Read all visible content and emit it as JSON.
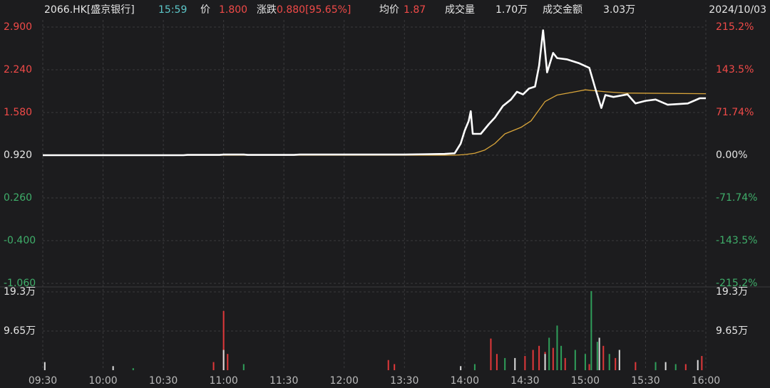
{
  "header": {
    "items": [
      {
        "text": "2066.HK[盛京银行]",
        "color": "#e6e6e6"
      },
      {
        "text": "15:59",
        "color": "#5cc6c8"
      },
      {
        "text": "价",
        "color": "#e6e6e6"
      },
      {
        "text": "1.800",
        "color": "#f04a48"
      },
      {
        "text": "涨跌",
        "color": "#e6e6e6"
      },
      {
        "text": "0.880[95.65%]",
        "color": "#f04a48"
      },
      {
        "text": "均价",
        "color": "#e6e6e6"
      },
      {
        "text": "1.87",
        "color": "#f04a48"
      },
      {
        "text": "成交量",
        "color": "#e6e6e6"
      },
      {
        "text": "1.70万",
        "color": "#e6e6e6"
      },
      {
        "text": "成交金额",
        "color": "#e6e6e6"
      },
      {
        "text": "3.03万",
        "color": "#e6e6e6"
      }
    ],
    "date": "2024/10/03"
  },
  "chart_data": [
    {
      "type": "line",
      "series": [
        {
          "color": "#ffffff",
          "x": [
            "09:30",
            "10:40",
            "10:42",
            "10:58",
            "11:00",
            "11:10",
            "11:12",
            "11:35",
            "11:38",
            "12:00",
            "13:30",
            "13:40",
            "13:50",
            "13:55",
            "13:58",
            "14:00",
            "14:02",
            "14:03",
            "14:04",
            "14:08",
            "14:12",
            "14:15",
            "14:19",
            "14:23",
            "14:26",
            "14:29",
            "14:32",
            "14:35",
            "14:37",
            "14:39",
            "14:41",
            "14:44",
            "14:46",
            "14:51",
            "14:57",
            "15:02",
            "15:05",
            "15:08",
            "15:10",
            "15:14",
            "15:21",
            "15:25",
            "15:30",
            "15:35",
            "15:41",
            "15:46",
            "15:51",
            "15:57",
            "16:00"
          ],
          "values": [
            0.92,
            0.92,
            0.925,
            0.925,
            0.93,
            0.93,
            0.925,
            0.925,
            0.93,
            0.93,
            0.93,
            0.935,
            0.94,
            0.95,
            1.1,
            1.3,
            1.45,
            1.6,
            1.25,
            1.25,
            1.4,
            1.5,
            1.68,
            1.78,
            1.9,
            1.86,
            1.95,
            1.98,
            2.3,
            2.85,
            2.2,
            2.5,
            2.42,
            2.4,
            2.34,
            2.27,
            1.95,
            1.65,
            1.85,
            1.82,
            1.86,
            1.72,
            1.76,
            1.78,
            1.7,
            1.71,
            1.72,
            1.8,
            1.8
          ]
        },
        {
          "color": "#d9a53a",
          "x": [
            "09:30",
            "13:55",
            "14:00",
            "14:05",
            "14:10",
            "14:15",
            "14:20",
            "14:28",
            "14:33",
            "14:40",
            "14:46",
            "14:55",
            "15:00",
            "15:10",
            "15:20",
            "16:00"
          ],
          "values": [
            0.92,
            0.92,
            0.93,
            0.95,
            1.0,
            1.1,
            1.25,
            1.35,
            1.45,
            1.75,
            1.85,
            1.9,
            1.93,
            1.9,
            1.88,
            1.87
          ]
        }
      ],
      "ylim": [
        -1.06,
        2.9
      ],
      "yticks": [
        {
          "value": 2.9,
          "label": "2.900"
        },
        {
          "value": 2.24,
          "label": "2.240"
        },
        {
          "value": 1.58,
          "label": "1.580"
        },
        {
          "value": 0.92,
          "label": "0.920"
        },
        {
          "value": 0.26,
          "label": "0.260"
        },
        {
          "value": -0.4,
          "label": "-0.400"
        },
        {
          "value": -1.06,
          "label": "-1.060"
        }
      ],
      "y2lim": [
        -215.2,
        215.2
      ],
      "y2ticks": [
        {
          "value": 215.2,
          "label": "215.2%"
        },
        {
          "value": 143.5,
          "label": "143.5%"
        },
        {
          "value": 71.74,
          "label": "71.74%"
        },
        {
          "value": 0,
          "label": "0.00%"
        },
        {
          "value": -71.74,
          "label": "-71.74%"
        },
        {
          "value": -143.5,
          "label": "-143.5%"
        },
        {
          "value": -215.2,
          "label": "-215.2%"
        }
      ],
      "up_color": "#f04a48",
      "down_color": "#3fae6a",
      "flat_color": "#e6e6e6",
      "grid": true
    },
    {
      "type": "bar",
      "series": [
        {
          "color": "#e0383a",
          "x": [
            "10:55",
            "11:00",
            "11:02",
            "13:22",
            "13:25",
            "14:13",
            "14:16",
            "14:30",
            "14:34",
            "14:37",
            "14:40",
            "14:44",
            "14:50",
            "15:02",
            "15:09",
            "15:15",
            "15:25",
            "15:50",
            "15:58"
          ],
          "values": [
            2.0,
            14.6,
            4.0,
            2.5,
            1.5,
            7.8,
            4.0,
            3.5,
            5.0,
            6.0,
            4.5,
            5.5,
            3.0,
            1.5,
            6.0,
            3.0,
            2.0,
            1.5,
            3.5
          ]
        },
        {
          "color": "#2f9e5a",
          "x": [
            "10:15",
            "11:10",
            "14:05",
            "14:20",
            "14:42",
            "14:46",
            "14:48",
            "14:55",
            "15:00",
            "15:03",
            "15:06",
            "15:12",
            "15:35",
            "15:45"
          ],
          "values": [
            0.5,
            1.5,
            1.5,
            3.0,
            8.0,
            11.0,
            6.0,
            5.0,
            4.0,
            19.5,
            7.0,
            4.0,
            2.0,
            1.5
          ]
        },
        {
          "color": "#dddddd",
          "x": [
            "09:31",
            "10:05",
            "11:00",
            "13:58",
            "14:25",
            "14:40",
            "15:07",
            "15:17",
            "15:40",
            "15:56"
          ],
          "values": [
            2.0,
            1.0,
            5.0,
            1.0,
            3.0,
            4.0,
            8.0,
            5.0,
            2.0,
            2.5
          ]
        }
      ],
      "ylim": [
        0,
        19.3
      ],
      "yticks": [
        {
          "value": 9.65,
          "label": "9.65万"
        },
        {
          "value": 19.3,
          "label": "19.3万"
        }
      ],
      "xticks": [
        "09:30",
        "10:00",
        "10:30",
        "11:00",
        "11:30",
        "12:00",
        "13:30",
        "14:00",
        "14:30",
        "15:00",
        "15:30",
        "16:00"
      ],
      "grid": true
    }
  ]
}
